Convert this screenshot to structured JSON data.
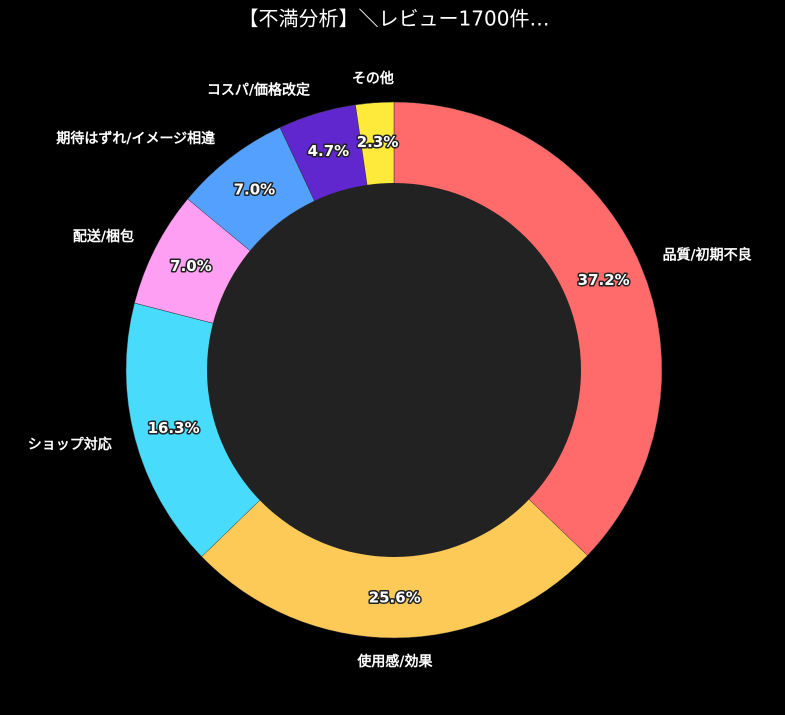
{
  "chart_data": {
    "type": "donut",
    "title": "【不満分析】＼レビュー1700件…",
    "categories": [
      "品質/初期不良",
      "使用感/効果",
      "ショップ対応",
      "配送/梱包",
      "期待はずれ/イメージ相違",
      "コスパ/価格改定",
      "その他"
    ],
    "values": [
      37.2,
      25.6,
      16.3,
      7.0,
      7.0,
      4.7,
      2.3
    ],
    "value_labels": [
      "37.2%",
      "25.6%",
      "16.3%",
      "7.0%",
      "7.0%",
      "4.7%",
      "2.3%"
    ],
    "colors": [
      "#ff6b6b",
      "#feca57",
      "#48dbfb",
      "#ff9ff3",
      "#54a0ff",
      "#5f27cd",
      "#feea3a"
    ]
  }
}
